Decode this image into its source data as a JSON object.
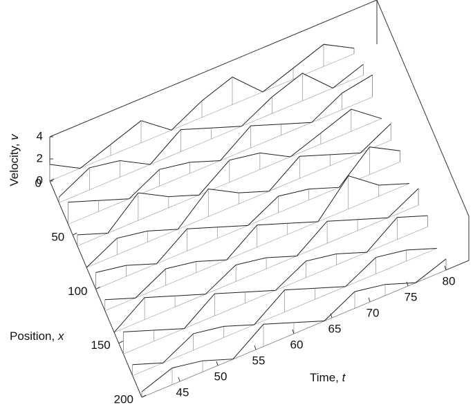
{
  "chart_data": {
    "type": "surface",
    "zlabel": [
      "Velocity,",
      "v"
    ],
    "xlabel": [
      "Position,",
      "x"
    ],
    "tlabel": [
      "Time,",
      "t"
    ],
    "xlim": [
      0,
      200
    ],
    "tlim": [
      40,
      83
    ],
    "zlim": [
      0,
      4
    ],
    "xticks": [
      0,
      50,
      100,
      150,
      200
    ],
    "tticks": [
      45,
      50,
      55,
      60,
      65,
      70,
      75,
      80
    ],
    "zticks": [
      0,
      2,
      4
    ],
    "x": [
      0,
      20,
      40,
      60,
      80,
      100,
      120,
      140,
      160,
      180,
      200
    ],
    "t": [
      40,
      44,
      48,
      52,
      56,
      60,
      64,
      68,
      72,
      76,
      80
    ],
    "z": [
      [
        1.5,
        0,
        1,
        2,
        0,
        1.5,
        2.5,
        0,
        1,
        2,
        0.5
      ],
      [
        0.5,
        2,
        1.5,
        0,
        2,
        1,
        0,
        1.5,
        2.5,
        0,
        1
      ],
      [
        2,
        1,
        0,
        1.5,
        1,
        0,
        2,
        1,
        0,
        1.5,
        2
      ],
      [
        1,
        0,
        2.5,
        1,
        0,
        2,
        1.5,
        0,
        1,
        2,
        0
      ],
      [
        0,
        1.5,
        1,
        0,
        2.5,
        1,
        0,
        2,
        1,
        0,
        1.5
      ],
      [
        1.5,
        1,
        0,
        2,
        1,
        0,
        1.5,
        1,
        0,
        2.5,
        1
      ],
      [
        1,
        0,
        1.5,
        1,
        0,
        2,
        1,
        0,
        3,
        1,
        0
      ],
      [
        0,
        2,
        1,
        0,
        1.5,
        1,
        0,
        2,
        1,
        0,
        1.5
      ],
      [
        2,
        1,
        0,
        2,
        1,
        0,
        1.5,
        1,
        0,
        2,
        1
      ],
      [
        1,
        0,
        1.5,
        1,
        0,
        2,
        1,
        0,
        1.5,
        1,
        0
      ],
      [
        0.5,
        1.5,
        1,
        0,
        2,
        1,
        0,
        1.5,
        1,
        0,
        1
      ]
    ],
    "color": "#222222"
  }
}
